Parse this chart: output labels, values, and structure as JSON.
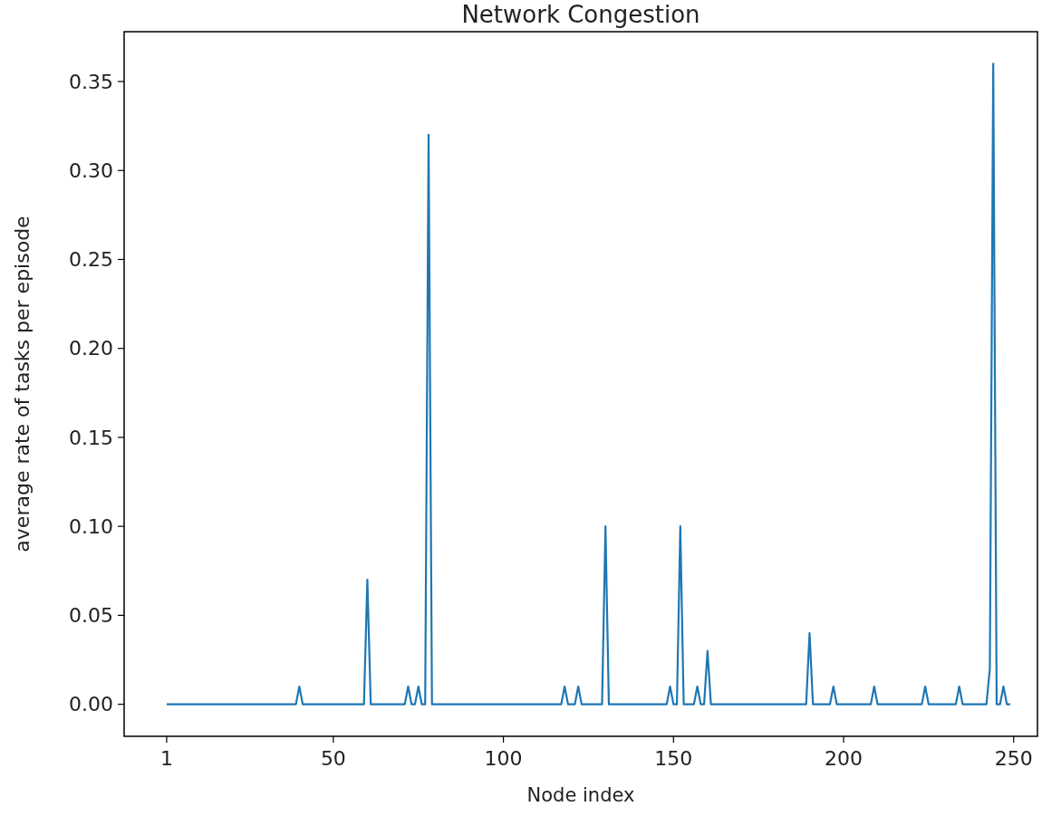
{
  "chart_data": {
    "type": "line",
    "title": "Network Congestion",
    "xlabel": "Node index",
    "ylabel": "average rate of tasks per episode",
    "series": [
      {
        "color": "#1f77b4",
        "x": [
          1,
          39,
          40,
          41,
          59,
          60,
          61,
          71,
          72,
          73,
          74,
          75,
          76,
          77,
          78,
          79,
          117,
          118,
          119,
          121,
          122,
          123,
          129,
          130,
          131,
          148,
          149,
          150,
          151,
          152,
          153,
          156,
          157,
          158,
          159,
          160,
          161,
          189,
          190,
          191,
          196,
          197,
          198,
          208,
          209,
          210,
          223,
          224,
          225,
          233,
          234,
          235,
          242,
          243,
          244,
          245,
          246,
          247,
          248,
          249
        ],
        "values": [
          0,
          0,
          0.01,
          0,
          0,
          0.07,
          0,
          0,
          0.01,
          0,
          0,
          0.01,
          0,
          0,
          0.32,
          0,
          0,
          0.01,
          0,
          0,
          0.01,
          0,
          0,
          0.1,
          0,
          0,
          0.01,
          0,
          0,
          0.1,
          0,
          0,
          0.01,
          0,
          0,
          0.03,
          0,
          0,
          0.04,
          0,
          0,
          0.01,
          0,
          0,
          0.01,
          0,
          0,
          0.01,
          0,
          0,
          0.01,
          0,
          0,
          0.02,
          0.36,
          0,
          0,
          0.01,
          0,
          0
        ]
      }
    ],
    "xlim": [
      -11.5,
      257
    ],
    "xticks": [
      1,
      50,
      100,
      150,
      200,
      250
    ],
    "ylim": [
      -0.018,
      0.378
    ],
    "yticks": [
      {
        "value": 0,
        "label": "0.00"
      },
      {
        "value": 0.05,
        "label": "0.05"
      },
      {
        "value": 0.1,
        "label": "0.10"
      },
      {
        "value": 0.15,
        "label": "0.15"
      },
      {
        "value": 0.2,
        "label": "0.20"
      },
      {
        "value": 0.25,
        "label": "0.25"
      },
      {
        "value": 0.3,
        "label": "0.30"
      },
      {
        "value": 0.35,
        "label": "0.35"
      }
    ],
    "grid": false,
    "marker": "none",
    "line_style": "solid"
  }
}
